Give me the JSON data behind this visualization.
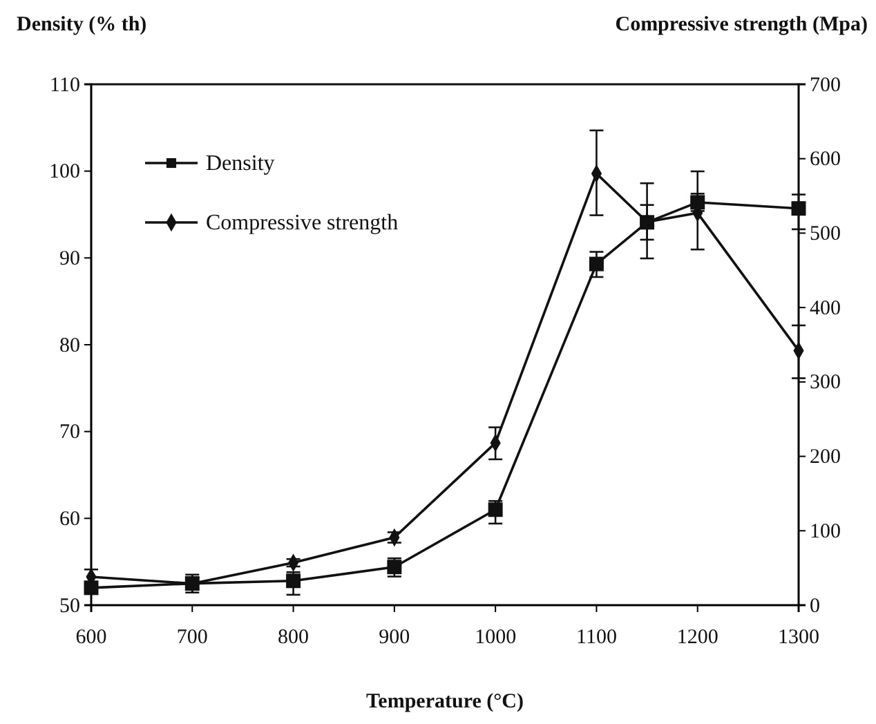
{
  "chart_data": {
    "type": "line",
    "xlabel": "Temperature (°C)",
    "ylabel": "Density (% th)",
    "y2label": "Compressive strength (Mpa)",
    "x": [
      600,
      700,
      800,
      900,
      1000,
      1100,
      1150,
      1200,
      1300
    ],
    "xlim": [
      600,
      1300
    ],
    "xticks": [
      600,
      700,
      800,
      900,
      1000,
      1100,
      1200,
      1300
    ],
    "ylim": [
      50,
      110
    ],
    "yticks": [
      50,
      60,
      70,
      80,
      90,
      100,
      110
    ],
    "y2lim": [
      0,
      700
    ],
    "y2ticks": [
      0,
      100,
      200,
      300,
      400,
      500,
      600,
      700
    ],
    "grid": false,
    "legend": "top left",
    "line_style": "solid",
    "series": [
      {
        "name": "Density",
        "color": "#111111",
        "marker": "square",
        "values": [
          52.0,
          52.5,
          52.8,
          54.4,
          61.0,
          89.3,
          94.1,
          96.4,
          95.7
        ],
        "errors": [
          0.7,
          0.7,
          [
            51.2,
            53.8
          ],
          [
            53.3,
            55.4
          ],
          [
            59.4,
            62.0
          ],
          [
            87.8,
            90.7
          ],
          2.0,
          1.0,
          [
            93.3,
            97.3
          ]
        ]
      },
      {
        "name": "Compressive strength",
        "color": "#111111",
        "marker": "diamond",
        "axis": "y2",
        "values": [
          38,
          29,
          57,
          91,
          218,
          580,
          515,
          527,
          342
        ],
        "errors": [
          10,
          12,
          5,
          7,
          [
            196,
            239
          ],
          [
            524,
            638
          ],
          [
            466,
            567
          ],
          [
            478,
            583
          ],
          [
            305,
            376
          ]
        ]
      }
    ]
  }
}
